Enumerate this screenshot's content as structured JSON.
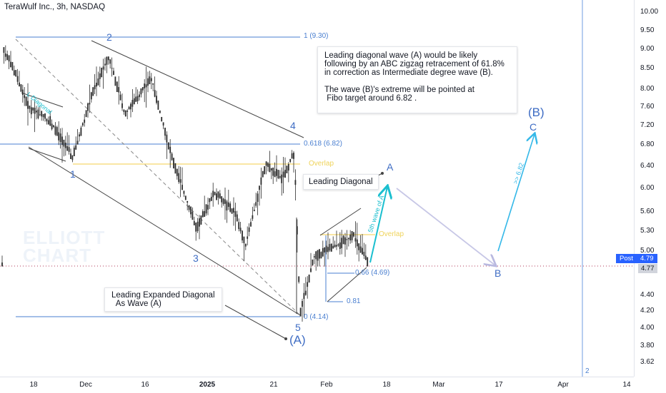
{
  "header": {
    "title": "TeraWulf Inc., 3h, NASDAQ"
  },
  "price_axis": {
    "ticks": [
      "10.00",
      "9.50",
      "9.00",
      "8.50",
      "8.00",
      "7.60",
      "7.20",
      "6.80",
      "6.40",
      "6.00",
      "5.60",
      "5.30",
      "5.00",
      "4.70",
      "4.40",
      "4.20",
      "4.00",
      "3.80",
      "3.62"
    ],
    "post_label": "Post",
    "post_price": "4.79",
    "last_price": "4.77"
  },
  "time_axis": {
    "ticks": [
      "18",
      "Dec",
      "16",
      "2025",
      "21",
      "Feb",
      "18",
      "Mar",
      "17",
      "Apr",
      "14"
    ],
    "bold": "2025"
  },
  "watermark": {
    "line1": "ELLIOTT",
    "line2": "CHART"
  },
  "notes": {
    "main": "Leading diagonal wave (A) would be likely\nfollowing by an ABC zigzag retracement of 61.8%\nin correction as Intermediate degree wave (B).\n\nThe wave (B)'s extreme will be pointed at\n Fibo target around 6.82 .",
    "leading_diagonal": "Leading Diagonal",
    "expanded": "Leading Expanded Diagonal\n  As Wave (A)"
  },
  "fib_labels": {
    "f1": "1 (9.30)",
    "f0618": "0.618 (6.82)",
    "f0": "0 (4.14)",
    "f066": "0.66 (4.69)",
    "f081": "0.81"
  },
  "overlap_labels": {
    "upper": "Overlap",
    "lower": "Overlap"
  },
  "wave_labels": {
    "w1": "1",
    "w2": "2",
    "w3": "3",
    "w4": "4",
    "w5": "5",
    "wA_big": "(A)",
    "wB_big": "(B)",
    "a": "A",
    "b": "B",
    "c": "C",
    "l_diagonal": "L Diagonal",
    "fifth_wave": "5th wave of A",
    "target": ">> 6.82"
  },
  "misc": {
    "marker_2": "2"
  },
  "colors": {
    "candle": "#2b2b2b",
    "fib_line": "#4a7fd0",
    "overlap_line": "#f5d76e",
    "teal_arrow": "#1bbfcf",
    "projection_arrow": "#c8c8e8",
    "target_arrow": "#34b8e8",
    "post_bg": "#2962ff"
  }
}
